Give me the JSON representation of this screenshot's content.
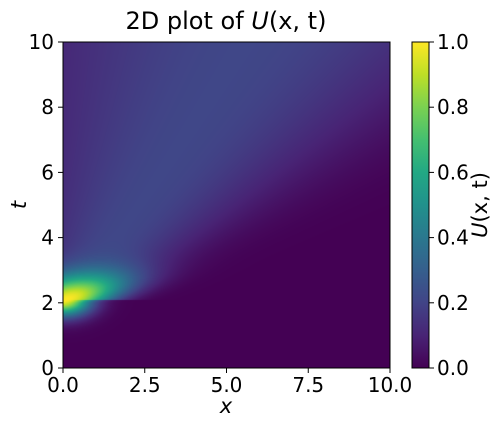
{
  "chart_data": {
    "type": "heatmap",
    "title": "2D plot of U(x, t)",
    "title_parts": {
      "prefix": "2D plot of ",
      "func": "U",
      "args": "(x, t)"
    },
    "xlabel": "x",
    "ylabel": "t",
    "xlim": [
      0,
      10
    ],
    "ylim": [
      0,
      10
    ],
    "x_ticks": [
      "0.0",
      "2.5",
      "5.0",
      "7.5",
      "10.0"
    ],
    "x_tick_values": [
      0,
      2.5,
      5,
      7.5,
      10
    ],
    "y_ticks": [
      "0",
      "2",
      "4",
      "6",
      "8",
      "10"
    ],
    "y_tick_values": [
      0,
      2,
      4,
      6,
      8,
      10
    ],
    "colorbar": {
      "label": "U(x, t)",
      "label_parts": {
        "func": "U",
        "args": "(x, t)"
      },
      "range": [
        0,
        1
      ],
      "ticks": [
        "0.0",
        "0.2",
        "0.4",
        "0.6",
        "0.8",
        "1.0"
      ],
      "tick_values": [
        0,
        0.2,
        0.4,
        0.6,
        0.8,
        1.0
      ]
    },
    "colormap": "viridis",
    "grid": false,
    "peak": {
      "x": 0.0,
      "t": 2.1,
      "value": 1.0
    },
    "ridge": [
      {
        "t": 2,
        "x": 0.0,
        "value": 0.98
      },
      {
        "t": 3,
        "x": 1.5,
        "value": 0.45
      },
      {
        "t": 4,
        "x": 2.7,
        "value": 0.32
      },
      {
        "t": 6,
        "x": 4.4,
        "value": 0.24
      },
      {
        "t": 8,
        "x": 5.9,
        "value": 0.2
      },
      {
        "t": 10,
        "x": 7.2,
        "value": 0.17
      }
    ]
  }
}
